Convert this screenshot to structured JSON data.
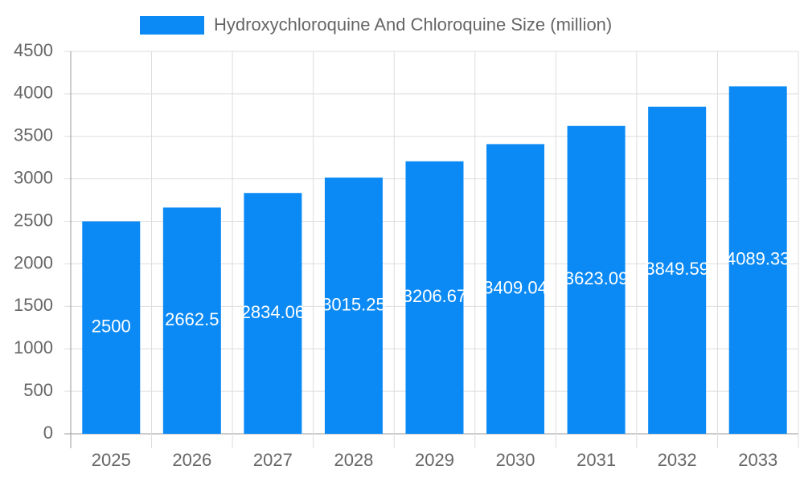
{
  "chart_data": {
    "type": "bar",
    "categories": [
      "2025",
      "2026",
      "2027",
      "2028",
      "2029",
      "2030",
      "2031",
      "2032",
      "2033"
    ],
    "series": [
      {
        "name": "Hydroxychloroquine And Chloroquine Size (million)",
        "color": "#0b8af5",
        "values": [
          2500,
          2662.5,
          2834.06,
          3015.25,
          3206.67,
          3409.04,
          3623.09,
          3849.59,
          4089.33
        ]
      }
    ],
    "ylim": [
      0,
      4500
    ],
    "yticks": [
      0,
      500,
      1000,
      1500,
      2000,
      2500,
      3000,
      3500,
      4000,
      4500
    ],
    "grid": true,
    "legend": "top"
  }
}
